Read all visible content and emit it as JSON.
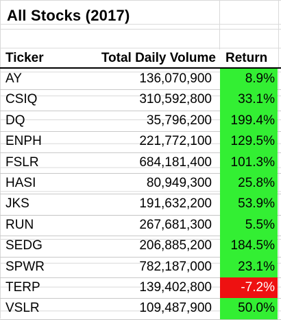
{
  "title": "All Stocks (2017)",
  "headers": {
    "ticker": "Ticker",
    "volume": "Total Daily Volume",
    "return": "Return"
  },
  "colors": {
    "positive": "#33ef33",
    "negative": "#ee1111"
  },
  "rows": [
    {
      "ticker": "AY",
      "volume": "136,070,900",
      "return": "8.9%",
      "sign": "pos"
    },
    {
      "ticker": "CSIQ",
      "volume": "310,592,800",
      "return": "33.1%",
      "sign": "pos"
    },
    {
      "ticker": "DQ",
      "volume": "35,796,200",
      "return": "199.4%",
      "sign": "pos"
    },
    {
      "ticker": "ENPH",
      "volume": "221,772,100",
      "return": "129.5%",
      "sign": "pos"
    },
    {
      "ticker": "FSLR",
      "volume": "684,181,400",
      "return": "101.3%",
      "sign": "pos"
    },
    {
      "ticker": "HASI",
      "volume": "80,949,300",
      "return": "25.8%",
      "sign": "pos"
    },
    {
      "ticker": "JKS",
      "volume": "191,632,200",
      "return": "53.9%",
      "sign": "pos"
    },
    {
      "ticker": "RUN",
      "volume": "267,681,300",
      "return": "5.5%",
      "sign": "pos"
    },
    {
      "ticker": "SEDG",
      "volume": "206,885,200",
      "return": "184.5%",
      "sign": "pos"
    },
    {
      "ticker": "SPWR",
      "volume": "782,187,000",
      "return": "23.1%",
      "sign": "pos"
    },
    {
      "ticker": "TERP",
      "volume": "139,402,800",
      "return": "-7.2%",
      "sign": "neg"
    },
    {
      "ticker": "VSLR",
      "volume": "109,487,900",
      "return": "50.0%",
      "sign": "pos"
    }
  ]
}
